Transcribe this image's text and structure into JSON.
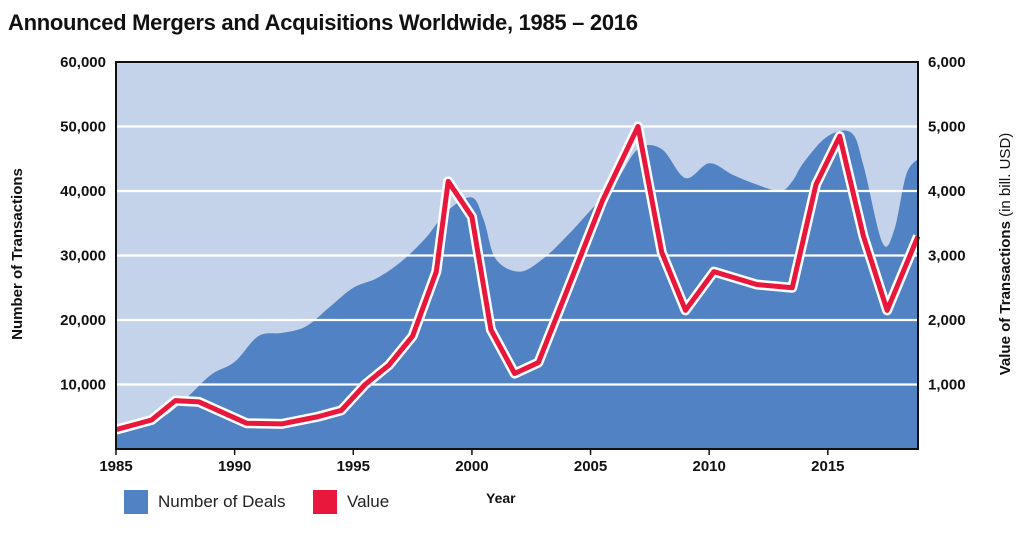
{
  "title": "Announced Mergers and Acquisitions Worldwide, 1985 – 2016",
  "colors": {
    "area": "#5183c4",
    "plot_bg": "#c5d3ea",
    "line": "#e8173b",
    "grid": "#ffffff"
  },
  "legend": {
    "deals_label": "Number of Deals",
    "value_label": "Value"
  },
  "chart_data": {
    "type": "area",
    "title": "Announced Mergers and Acquisitions Worldwide, 1985 – 2016",
    "xlabel": "Year",
    "ylabel": "Number of Transactions",
    "y2label": "Value of Transactions (in bill. USD)",
    "xlim": [
      1985,
      2018.8
    ],
    "ylim": [
      0,
      60000
    ],
    "y2lim": [
      0,
      6000
    ],
    "xticks": [
      1985,
      1990,
      1995,
      2000,
      2005,
      2010,
      2015
    ],
    "yticks": [
      10000,
      20000,
      30000,
      40000,
      50000,
      60000
    ],
    "ytick_labels": [
      "10,000",
      "20,000",
      "30,000",
      "40,000",
      "50,000",
      "60,000"
    ],
    "y2ticks": [
      1000,
      2000,
      3000,
      4000,
      5000,
      6000
    ],
    "y2tick_labels": [
      "1,000",
      "2,000",
      "3,000",
      "4,000",
      "5,000",
      "6,000"
    ],
    "grid": true,
    "legend_position": "bottom-left",
    "series": [
      {
        "name": "Number of Deals",
        "type": "area",
        "axis": "left",
        "x": [
          1985,
          1986,
          1987,
          1988,
          1989,
          1990,
          1991,
          1992,
          1993,
          1994,
          1995,
          1996,
          1997,
          1998,
          1999,
          2000,
          2000.5,
          2001,
          2002,
          2003,
          2004,
          2005,
          2006,
          2007,
          2008,
          2009,
          2010,
          2011,
          2012,
          2013,
          2013.5,
          2014,
          2015,
          2016,
          2016.5,
          2017.3,
          2017.8,
          2018.3,
          2018.8
        ],
        "values": [
          3000,
          4000,
          5000,
          8000,
          11500,
          13500,
          17500,
          18000,
          19000,
          22000,
          25000,
          26500,
          29000,
          32500,
          37000,
          39000,
          35500,
          29500,
          27500,
          29500,
          33000,
          37000,
          41000,
          46500,
          46500,
          42000,
          44300,
          42500,
          41000,
          40000,
          41500,
          44500,
          48500,
          49000,
          44000,
          32000,
          34000,
          42500,
          45000
        ]
      },
      {
        "name": "Value",
        "type": "line",
        "axis": "right",
        "x": [
          1985,
          1986.5,
          1987.5,
          1988.5,
          1990.5,
          1992,
          1993.5,
          1994.5,
          1995.5,
          1996.5,
          1997.5,
          1998.5,
          1999,
          2000,
          2000.8,
          2001.8,
          2002.8,
          2004,
          2005.5,
          2007,
          2008,
          2009,
          2010.2,
          2012,
          2013.5,
          2014.5,
          2015.5,
          2016.5,
          2017.5,
          2018.8
        ],
        "values": [
          300,
          450,
          750,
          730,
          400,
          390,
          500,
          600,
          1000,
          1300,
          1750,
          2750,
          4150,
          3600,
          1850,
          1170,
          1340,
          2450,
          3850,
          5000,
          3050,
          2150,
          2750,
          2550,
          2500,
          4100,
          4850,
          3300,
          2150,
          3300
        ]
      }
    ]
  }
}
